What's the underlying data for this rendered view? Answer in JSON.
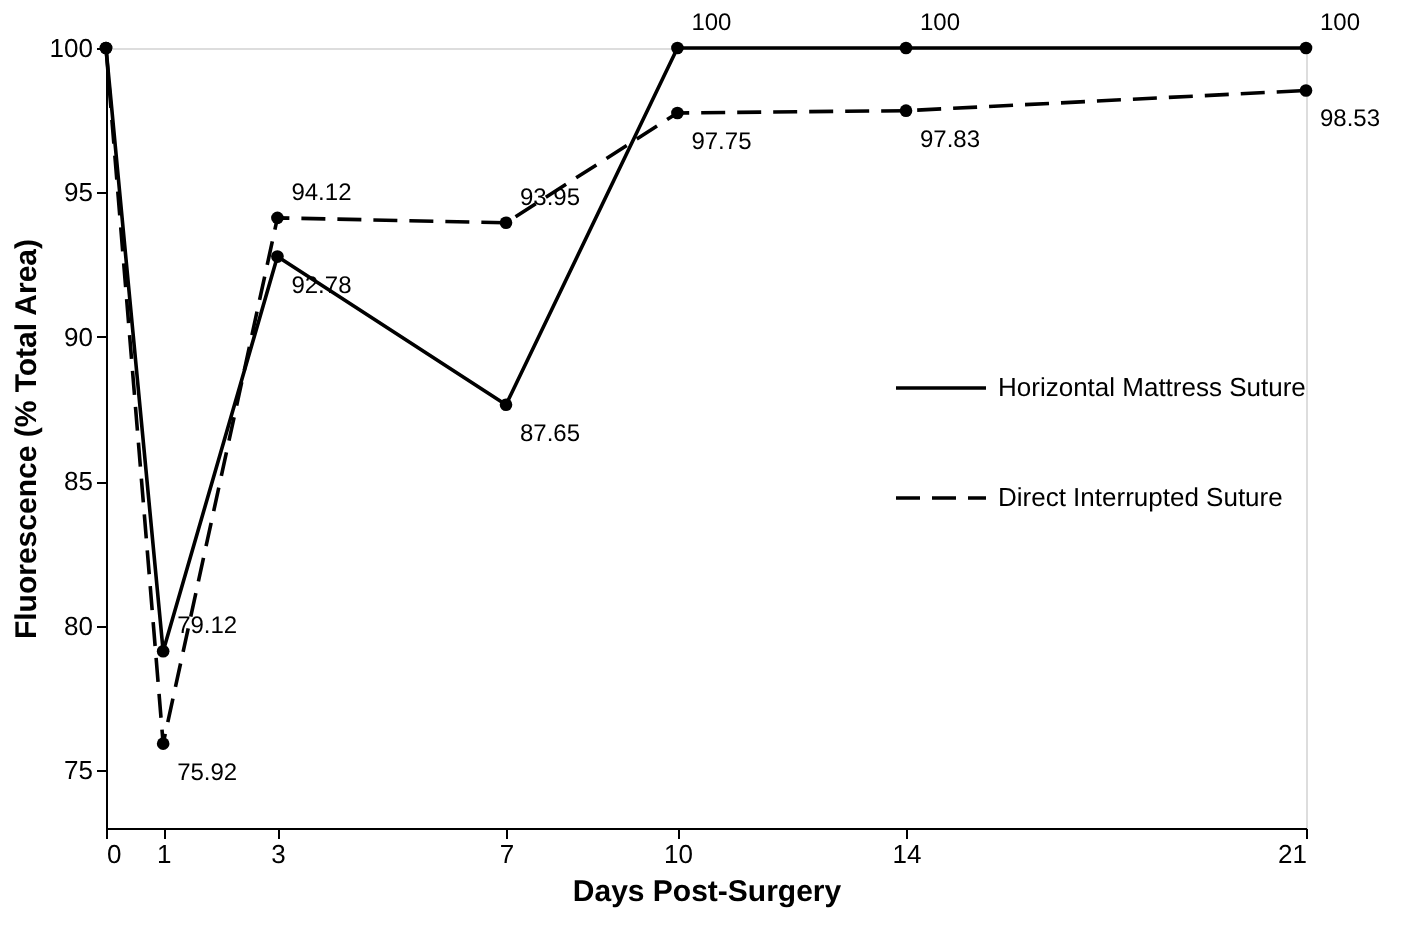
{
  "chart_data": {
    "type": "line",
    "xlabel": "Days Post-Surgery",
    "ylabel": "Fluorescence (% Total Area)",
    "x": [
      0,
      1,
      3,
      7,
      10,
      14,
      21
    ],
    "xlim": [
      0,
      21
    ],
    "xticks": [
      0,
      1,
      3,
      7,
      10,
      14,
      21
    ],
    "ylim": [
      73,
      100
    ],
    "yticks": [
      75,
      80,
      85,
      90,
      95,
      100
    ],
    "grid": false,
    "legend": "right",
    "marker": "circle",
    "series": [
      {
        "name": "Horizontal Mattress Suture",
        "color": "#000000",
        "line_style": "solid",
        "values": [
          100,
          79.12,
          92.78,
          87.65,
          100,
          100,
          100
        ],
        "value_labels": [
          null,
          "79.12",
          "92.78",
          "87.65",
          "100",
          "100",
          "100"
        ]
      },
      {
        "name": "Direct Interrupted Suture",
        "color": "#000000",
        "line_style": "dashed",
        "values": [
          100,
          75.92,
          94.12,
          93.95,
          97.75,
          97.83,
          98.53
        ],
        "value_labels": [
          null,
          "75.92",
          "94.12",
          "93.95",
          "97.75",
          "97.83",
          "98.53"
        ]
      }
    ]
  }
}
